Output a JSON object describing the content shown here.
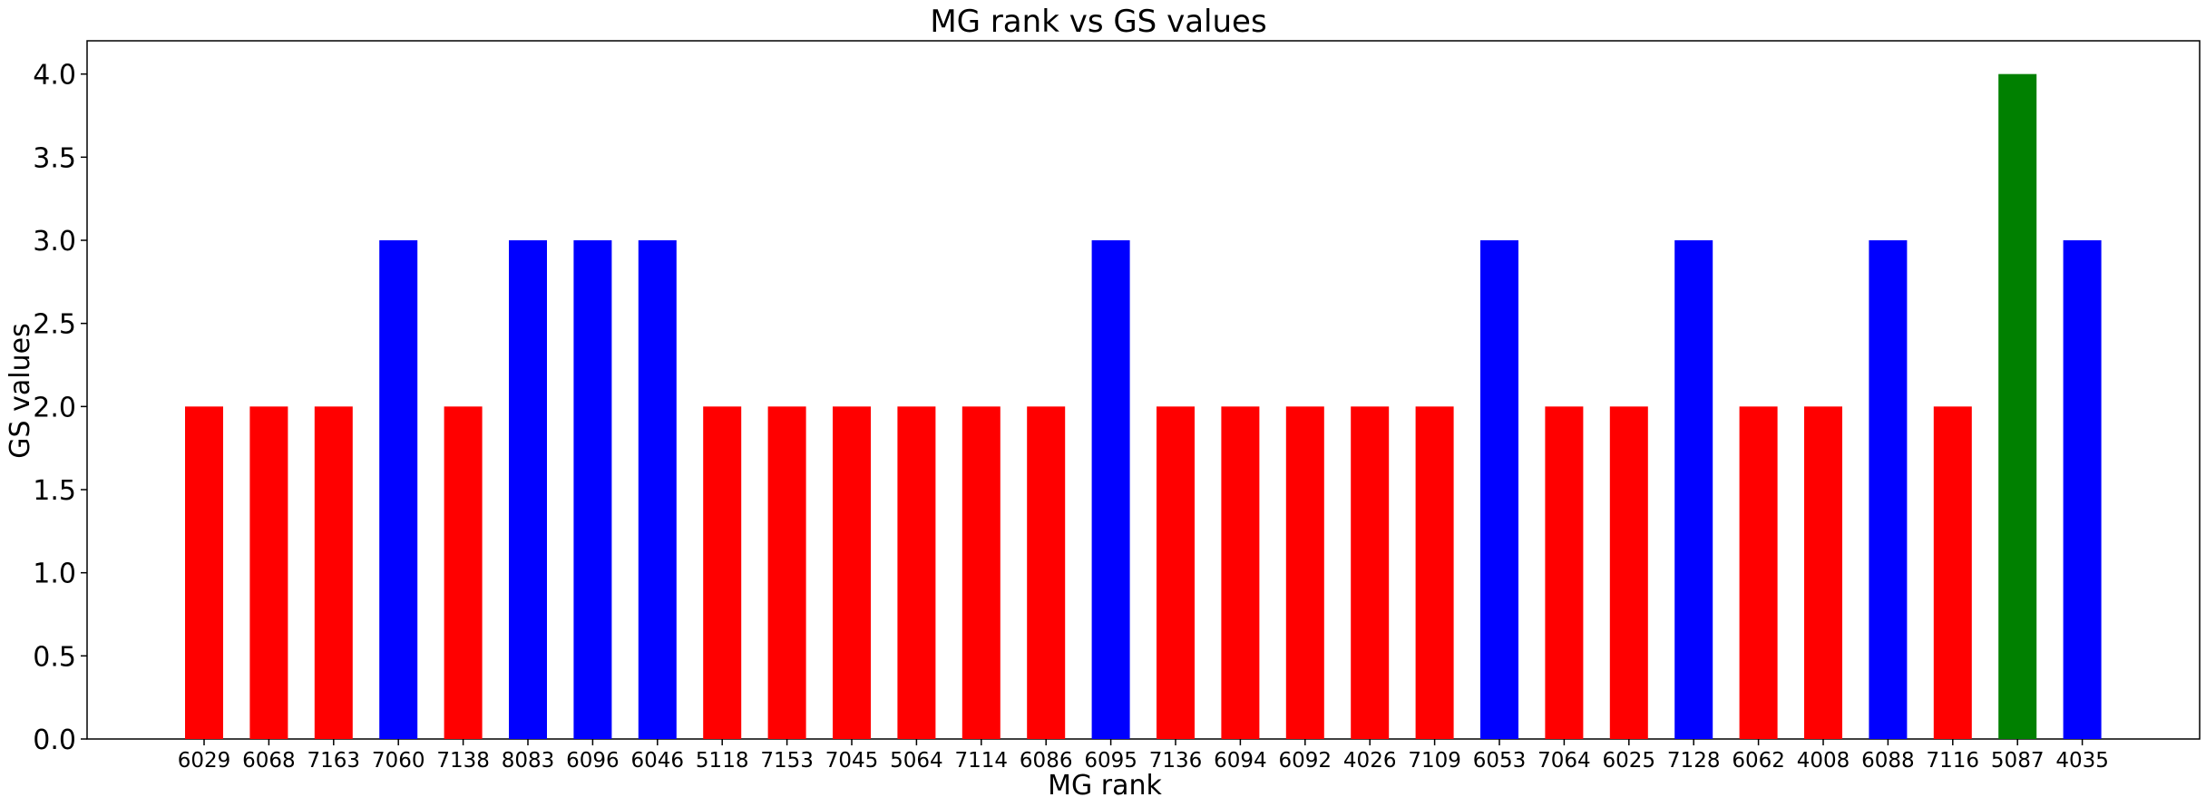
{
  "chart_data": {
    "type": "bar",
    "title": "MG rank vs GS values",
    "xlabel": "MG rank",
    "ylabel": "GS values",
    "ylim": [
      0,
      4.2
    ],
    "y_ticks": [
      "0.0",
      "0.5",
      "1.0",
      "1.5",
      "2.0",
      "2.5",
      "3.0",
      "3.5",
      "4.0"
    ],
    "grid": false,
    "legend": "none",
    "categories": [
      "6029",
      "6068",
      "7163",
      "7060",
      "7138",
      "8083",
      "6096",
      "6046",
      "5118",
      "7153",
      "7045",
      "5064",
      "7114",
      "6086",
      "6095",
      "7136",
      "6094",
      "6092",
      "4026",
      "7109",
      "6053",
      "7064",
      "6025",
      "7128",
      "6062",
      "4008",
      "6088",
      "7116",
      "5087",
      "4035"
    ],
    "values": [
      2,
      2,
      2,
      3,
      2,
      3,
      3,
      3,
      2,
      2,
      2,
      2,
      2,
      2,
      3,
      2,
      2,
      2,
      2,
      2,
      3,
      2,
      2,
      3,
      2,
      2,
      3,
      2,
      4,
      3
    ],
    "colors": {
      "2": "#ff0000",
      "3": "#0000ff",
      "4": "#008000"
    }
  }
}
